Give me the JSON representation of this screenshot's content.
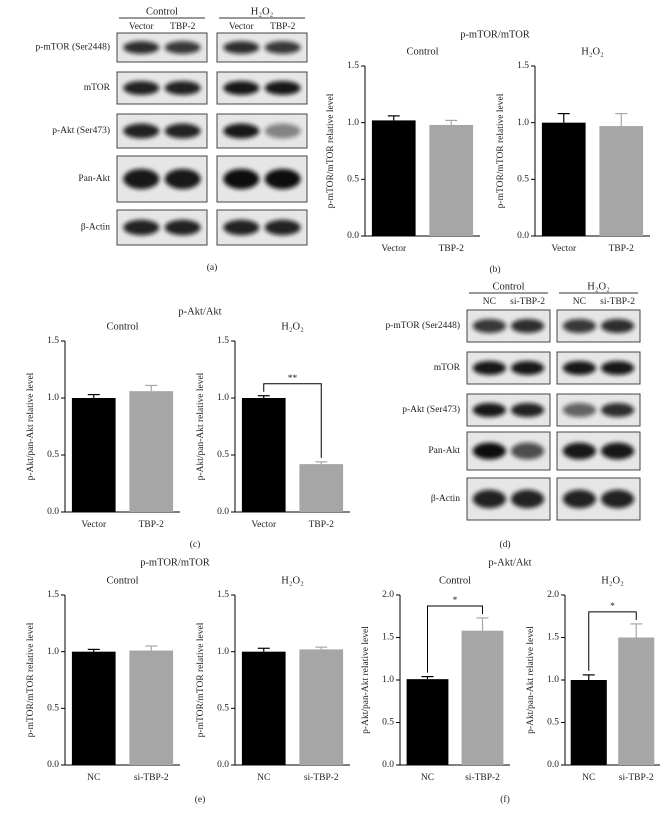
{
  "figure_titles": [
    "p-mTOR/mTOR",
    "p-Akt/Akt",
    "p-mTOR/mTOR",
    "p-Akt/Akt"
  ],
  "panel_labels": [
    "(a)",
    "(b)",
    "(c)",
    "(d)",
    "(e)",
    "(f)"
  ],
  "blots": [
    {
      "groups": [
        {
          "label": "Control",
          "lanes": [
            "Vector",
            "TBP-2"
          ]
        },
        {
          "label": "H₂O₂",
          "lanes": [
            "Vector",
            "TBP-2"
          ]
        }
      ],
      "rows": [
        "p-mTOR (Ser2448)",
        "mTOR",
        "p-Akt (Ser473)",
        "Pan-Akt",
        "β-Actin"
      ]
    },
    {
      "groups": [
        {
          "label": "Control",
          "lanes": [
            "NC",
            "si-TBP-2"
          ]
        },
        {
          "label": "H₂O₂",
          "lanes": [
            "NC",
            "si-TBP-2"
          ]
        }
      ],
      "rows": [
        "p-mTOR (Ser2448)",
        "mTOR",
        "p-Akt (Ser473)",
        "Pan-Akt",
        "β-Actin"
      ]
    }
  ],
  "chart_data": [
    {
      "type": "bar",
      "title": "Control",
      "ylabel": "p-mTOR/mTOR relative level",
      "categories": [
        "Vector",
        "TBP-2"
      ],
      "values": [
        1.02,
        0.98
      ],
      "errors": [
        0.04,
        0.04
      ],
      "colors": [
        "#000000",
        "#a6a6a6"
      ],
      "ylim": [
        0,
        1.5
      ],
      "yticks": [
        {
          "value": 0,
          "label": "0.0"
        },
        0.5,
        {
          "value": 1,
          "label": "1.0"
        },
        1.5
      ]
    },
    {
      "type": "bar",
      "title": "H₂O₂",
      "ylabel": "p-mTOR/mTOR relative level",
      "categories": [
        "Vector",
        "TBP-2"
      ],
      "values": [
        1.0,
        0.97
      ],
      "errors": [
        0.08,
        0.11
      ],
      "colors": [
        "#000000",
        "#a6a6a6"
      ],
      "ylim": [
        0,
        1.5
      ],
      "yticks": [
        {
          "value": 0,
          "label": "0.0"
        },
        0.5,
        {
          "value": 1,
          "label": "1.0"
        },
        1.5
      ]
    },
    {
      "type": "bar",
      "title": "Control",
      "ylabel": "p-Akt/pan-Akt relative level",
      "categories": [
        "Vector",
        "TBP-2"
      ],
      "values": [
        1.0,
        1.06
      ],
      "errors": [
        0.03,
        0.05
      ],
      "colors": [
        "#000000",
        "#a6a6a6"
      ],
      "ylim": [
        0,
        1.5
      ],
      "yticks": [
        {
          "value": 0,
          "label": "0.0"
        },
        0.5,
        {
          "value": 1,
          "label": "1.0"
        },
        1.5
      ]
    },
    {
      "type": "bar",
      "title": "H₂O₂",
      "ylabel": "p-Akt/pan-Akt relative level",
      "categories": [
        "Vector",
        "TBP-2"
      ],
      "values": [
        1.0,
        0.42
      ],
      "errors": [
        0.02,
        0.02
      ],
      "colors": [
        "#000000",
        "#a6a6a6"
      ],
      "ylim": [
        0,
        1.5
      ],
      "yticks": [
        {
          "value": 0,
          "label": "0.0"
        },
        0.5,
        {
          "value": 1,
          "label": "1.0"
        },
        1.5
      ],
      "annotation": "**"
    },
    {
      "type": "bar",
      "title": "Control",
      "ylabel": "p-mTOR/mTOR relative level",
      "categories": [
        "NC",
        "si-TBP-2"
      ],
      "values": [
        1.0,
        1.01
      ],
      "errors": [
        0.02,
        0.04
      ],
      "colors": [
        "#000000",
        "#a6a6a6"
      ],
      "ylim": [
        0,
        1.5
      ],
      "yticks": [
        {
          "value": 0,
          "label": "0.0"
        },
        0.5,
        {
          "value": 1,
          "label": "1.0"
        },
        1.5
      ]
    },
    {
      "type": "bar",
      "title": "H₂O₂",
      "ylabel": "p-mTOR/mTOR relative level",
      "categories": [
        "NC",
        "si-TBP-2"
      ],
      "values": [
        1.0,
        1.02
      ],
      "errors": [
        0.03,
        0.02
      ],
      "colors": [
        "#000000",
        "#a6a6a6"
      ],
      "ylim": [
        0,
        1.5
      ],
      "yticks": [
        {
          "value": 0,
          "label": "0.0"
        },
        0.5,
        {
          "value": 1,
          "label": "1.0"
        },
        1.5
      ]
    },
    {
      "type": "bar",
      "title": "Control",
      "ylabel": "p-Akt/pan-Akt relative level",
      "categories": [
        "NC",
        "si-TBP-2"
      ],
      "values": [
        1.01,
        1.58
      ],
      "errors": [
        0.03,
        0.15
      ],
      "colors": [
        "#000000",
        "#a6a6a6"
      ],
      "ylim": [
        0,
        2
      ],
      "yticks": [
        {
          "value": 0,
          "label": "0.0"
        },
        0.5,
        {
          "value": 1,
          "label": "1.0"
        },
        1.5,
        {
          "value": 2,
          "label": "2.0"
        }
      ],
      "annotation": "*"
    },
    {
      "type": "bar",
      "title": "H₂O₂",
      "ylabel": "p-Akt/pan-Akt relative level",
      "categories": [
        "NC",
        "si-TBP-2"
      ],
      "values": [
        1.0,
        1.5
      ],
      "errors": [
        0.06,
        0.16
      ],
      "colors": [
        "#000000",
        "#a6a6a6"
      ],
      "ylim": [
        0,
        2
      ],
      "yticks": [
        {
          "value": 0,
          "label": "0.0"
        },
        0.5,
        {
          "value": 1,
          "label": "1.0"
        },
        1.5,
        {
          "value": 2,
          "label": "2.0"
        }
      ],
      "annotation": "*"
    }
  ]
}
